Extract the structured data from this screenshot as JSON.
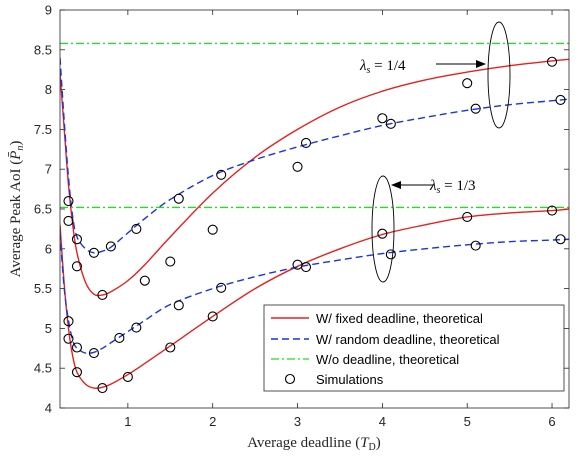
{
  "chart_data": {
    "type": "line",
    "xlabel": "Average deadline (T_D)",
    "xlabel_main": "Average deadline (",
    "xlabel_var": "T",
    "xlabel_sub": "D",
    "xlabel_end": ")",
    "ylabel_main": "Average Peak AoI (",
    "ylabel_var": "P̄",
    "ylabel_sub": "n",
    "ylabel_end": ")",
    "xlim": [
      0.2,
      6.2
    ],
    "ylim": [
      4,
      9
    ],
    "xticks": [
      1,
      2,
      3,
      4,
      5,
      6
    ],
    "yticks": [
      4,
      4.5,
      5,
      5.5,
      6,
      6.5,
      7,
      7.5,
      8,
      8.5,
      9
    ],
    "annotations": [
      "λs = 1/4",
      "λs = 1/3"
    ],
    "legend_position": "lower-right",
    "series": [
      {
        "name": "W/ fixed deadline, theoretical",
        "group": "λs = 1/4",
        "style": "solid",
        "color": "#e8201e",
        "x": [
          0.2,
          0.25,
          0.3,
          0.35,
          0.4,
          0.5,
          0.6,
          0.7,
          0.8,
          1.0,
          1.2,
          1.5,
          2.0,
          2.5,
          3.0,
          3.5,
          4.0,
          4.5,
          5.0,
          5.5,
          6.0,
          6.2
        ],
        "y": [
          8.2,
          7.5,
          6.8,
          6.3,
          5.95,
          5.58,
          5.43,
          5.42,
          5.46,
          5.6,
          5.8,
          6.15,
          6.7,
          7.15,
          7.5,
          7.78,
          7.98,
          8.12,
          8.22,
          8.3,
          8.36,
          8.38
        ]
      },
      {
        "name": "W/ random deadline, theoretical",
        "group": "λs = 1/4",
        "style": "dashed",
        "color": "#1a34e0",
        "x": [
          0.2,
          0.25,
          0.3,
          0.35,
          0.4,
          0.5,
          0.6,
          0.7,
          0.8,
          1.0,
          1.2,
          1.5,
          2.0,
          2.5,
          3.0,
          3.5,
          4.0,
          4.5,
          5.0,
          5.5,
          6.0,
          6.2
        ],
        "y": [
          8.4,
          7.6,
          6.9,
          6.4,
          6.15,
          6.0,
          5.95,
          5.97,
          6.02,
          6.2,
          6.38,
          6.62,
          6.92,
          7.12,
          7.28,
          7.42,
          7.55,
          7.65,
          7.74,
          7.81,
          7.86,
          7.88
        ]
      },
      {
        "name": "W/o deadline, theoretical",
        "group": "λs = 1/4",
        "style": "dashdot",
        "color": "#22dd22",
        "x": [
          0.2,
          6.2
        ],
        "y": [
          8.58,
          8.58
        ]
      },
      {
        "name": "W/ fixed deadline, theoretical",
        "group": "λs = 1/3",
        "style": "solid",
        "color": "#e8201e",
        "x": [
          0.2,
          0.25,
          0.3,
          0.35,
          0.4,
          0.5,
          0.6,
          0.7,
          0.8,
          1.0,
          1.2,
          1.5,
          2.0,
          2.5,
          3.0,
          3.5,
          4.0,
          4.5,
          5.0,
          5.5,
          6.0,
          6.2
        ],
        "y": [
          6.3,
          5.55,
          5.0,
          4.65,
          4.45,
          4.3,
          4.25,
          4.26,
          4.3,
          4.42,
          4.56,
          4.78,
          5.15,
          5.5,
          5.78,
          6.0,
          6.18,
          6.3,
          6.4,
          6.45,
          6.48,
          6.5
        ]
      },
      {
        "name": "W/ random deadline, theoretical",
        "group": "λs = 1/3",
        "style": "dashed",
        "color": "#1a34e0",
        "x": [
          0.2,
          0.25,
          0.3,
          0.35,
          0.4,
          0.5,
          0.6,
          0.7,
          0.8,
          1.0,
          1.2,
          1.5,
          2.0,
          2.5,
          3.0,
          3.5,
          4.0,
          4.5,
          5.0,
          5.5,
          6.0,
          6.2
        ],
        "y": [
          6.2,
          5.5,
          5.1,
          4.85,
          4.75,
          4.69,
          4.7,
          4.75,
          4.82,
          4.96,
          5.1,
          5.3,
          5.5,
          5.65,
          5.77,
          5.86,
          5.94,
          6.0,
          6.05,
          6.09,
          6.11,
          6.12
        ]
      },
      {
        "name": "W/o deadline, theoretical",
        "group": "λs = 1/3",
        "style": "dashdot",
        "color": "#22dd22",
        "x": [
          0.2,
          6.2
        ],
        "y": [
          6.52,
          6.52
        ]
      }
    ],
    "simulations": {
      "name": "Simulations",
      "points": [
        {
          "x": 0.3,
          "y": 6.6
        },
        {
          "x": 0.3,
          "y": 6.35
        },
        {
          "x": 0.4,
          "y": 6.12
        },
        {
          "x": 0.6,
          "y": 5.95
        },
        {
          "x": 0.8,
          "y": 6.03
        },
        {
          "x": 1.1,
          "y": 6.25
        },
        {
          "x": 1.6,
          "y": 6.63
        },
        {
          "x": 2.1,
          "y": 6.93
        },
        {
          "x": 3.1,
          "y": 7.33
        },
        {
          "x": 4.1,
          "y": 7.57
        },
        {
          "x": 5.1,
          "y": 7.76
        },
        {
          "x": 6.1,
          "y": 7.87
        },
        {
          "x": 0.4,
          "y": 5.78
        },
        {
          "x": 0.7,
          "y": 5.42
        },
        {
          "x": 1.2,
          "y": 5.6
        },
        {
          "x": 1.5,
          "y": 5.84
        },
        {
          "x": 2.0,
          "y": 6.24
        },
        {
          "x": 3.0,
          "y": 7.03
        },
        {
          "x": 4.0,
          "y": 7.64
        },
        {
          "x": 5.0,
          "y": 8.08
        },
        {
          "x": 6.0,
          "y": 8.35
        },
        {
          "x": 0.3,
          "y": 5.09
        },
        {
          "x": 0.4,
          "y": 4.76
        },
        {
          "x": 0.6,
          "y": 4.69
        },
        {
          "x": 0.9,
          "y": 4.88
        },
        {
          "x": 1.1,
          "y": 5.01
        },
        {
          "x": 1.6,
          "y": 5.29
        },
        {
          "x": 2.1,
          "y": 5.51
        },
        {
          "x": 3.1,
          "y": 5.77
        },
        {
          "x": 4.1,
          "y": 5.93
        },
        {
          "x": 5.1,
          "y": 6.04
        },
        {
          "x": 6.1,
          "y": 6.12
        },
        {
          "x": 0.3,
          "y": 4.87
        },
        {
          "x": 0.4,
          "y": 4.45
        },
        {
          "x": 0.7,
          "y": 4.25
        },
        {
          "x": 1.0,
          "y": 4.39
        },
        {
          "x": 1.5,
          "y": 4.76
        },
        {
          "x": 2.0,
          "y": 5.15
        },
        {
          "x": 3.0,
          "y": 5.8
        },
        {
          "x": 4.0,
          "y": 6.19
        },
        {
          "x": 5.0,
          "y": 6.4
        },
        {
          "x": 6.0,
          "y": 6.48
        }
      ]
    }
  },
  "legend": {
    "items": [
      {
        "label": "W/ fixed deadline, theoretical",
        "style": "solid",
        "color": "#e8201e"
      },
      {
        "label": "W/ random deadline, theoretical",
        "style": "dashed",
        "color": "#1a34e0"
      },
      {
        "label": "W/o deadline, theoretical",
        "style": "dashdot",
        "color": "#22dd22"
      },
      {
        "label": "Simulations",
        "style": "marker-circle",
        "color": "#000000"
      }
    ]
  },
  "annotation_labels": {
    "upper": {
      "lhs": "λ",
      "sub": "s",
      "rhs": " = 1/4"
    },
    "lower": {
      "lhs": "λ",
      "sub": "s",
      "rhs": " = 1/3"
    }
  }
}
